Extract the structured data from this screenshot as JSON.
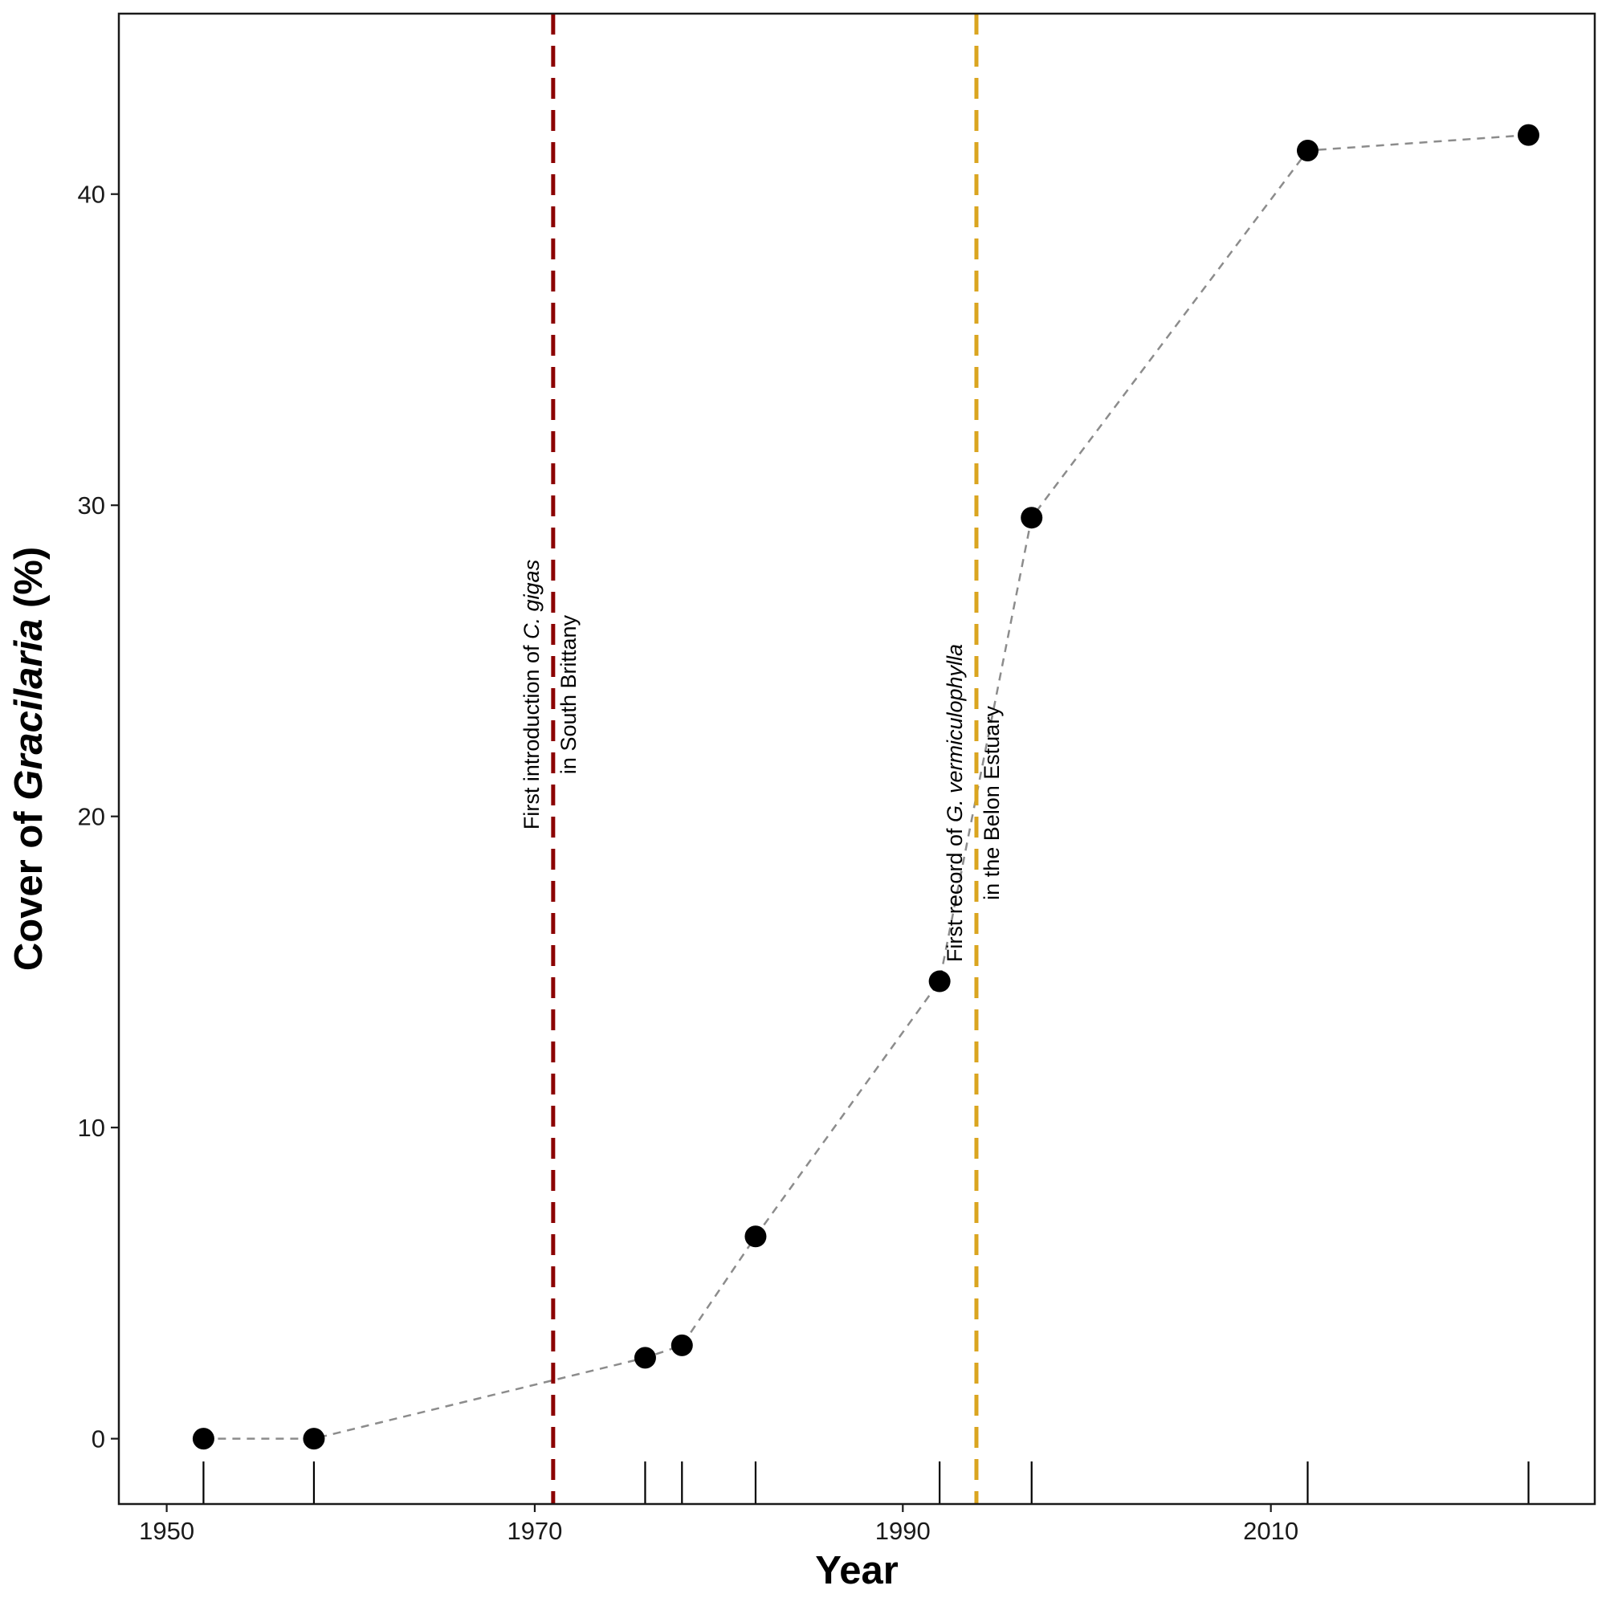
{
  "chart_data": {
    "type": "scatter",
    "connected": true,
    "xlabel": "Year",
    "ylabel": {
      "prefix": "Cover of ",
      "italic": "Gracilaria",
      "suffix": " (%)"
    },
    "xlim": [
      1947.4,
      2027.6
    ],
    "ylim": [
      -2.1,
      45.8
    ],
    "x_ticks": [
      1950,
      1970,
      1990,
      2010
    ],
    "y_ticks": [
      0,
      10,
      20,
      30,
      40
    ],
    "grid": false,
    "rug": true,
    "points": [
      {
        "x": 1952,
        "y": 0
      },
      {
        "x": 1958,
        "y": 0
      },
      {
        "x": 1976,
        "y": 2.6
      },
      {
        "x": 1978,
        "y": 3.0
      },
      {
        "x": 1982,
        "y": 6.5
      },
      {
        "x": 1992,
        "y": 14.7
      },
      {
        "x": 1997,
        "y": 29.6
      },
      {
        "x": 2012,
        "y": 41.4
      },
      {
        "x": 2024,
        "y": 41.9
      }
    ],
    "colors": {
      "points": "#000000",
      "connector": "#8c8c8c",
      "axis": "#1a1a1a"
    },
    "reference_lines": [
      {
        "x": 1971,
        "color": "#8b0000",
        "line1": {
          "prefix": "First introduction of ",
          "italic": "C. gigas",
          "suffix": ""
        },
        "line2": "in South Brittany"
      },
      {
        "x": 1994,
        "color": "#daa520",
        "line1": {
          "prefix": "First record of ",
          "italic": "G. vermiculophylla",
          "suffix": ""
        },
        "line2": "in the Belon Estuary"
      }
    ]
  }
}
